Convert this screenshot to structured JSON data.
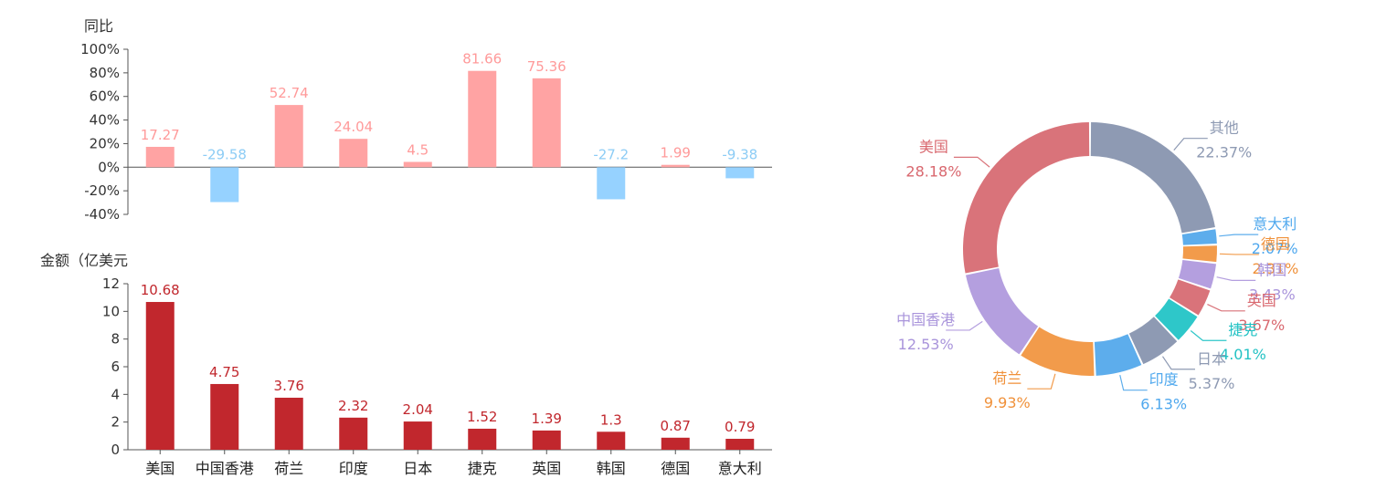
{
  "colors": {
    "yoy_positive": "#FFA3A3",
    "yoy_negative": "#96D2FF",
    "yoy_positive_label": "#FF9A9A",
    "yoy_negative_label": "#8CCCF5",
    "amount_bar": "#C1272D",
    "amount_label": "#C1272D",
    "axis": "#555555"
  },
  "chart_data": [
    {
      "type": "bar",
      "ylabel": "同比",
      "categories": [
        "美国",
        "中国香港",
        "荷兰",
        "印度",
        "日本",
        "捷克",
        "英国",
        "韩国",
        "德国",
        "意大利"
      ],
      "values": [
        17.27,
        -29.58,
        52.74,
        24.04,
        4.5,
        81.66,
        75.36,
        -27.2,
        1.99,
        -9.38
      ],
      "data_labels": [
        "17.27",
        "-29.58",
        "52.74",
        "24.04",
        "4.5",
        "81.66",
        "75.36",
        "-27.2",
        "1.99",
        "-9.38"
      ],
      "ylim": [
        -40,
        100
      ],
      "yticks": [
        "100%",
        "80%",
        "60%",
        "40%",
        "20%",
        "0%",
        "-20%",
        "-40%"
      ],
      "ytick_values": [
        100,
        80,
        60,
        40,
        20,
        0,
        -20,
        -40
      ]
    },
    {
      "type": "bar",
      "ylabel": "金额（亿美元",
      "categories": [
        "美国",
        "中国香港",
        "荷兰",
        "印度",
        "日本",
        "捷克",
        "英国",
        "韩国",
        "德国",
        "意大利"
      ],
      "values": [
        10.68,
        4.75,
        3.76,
        2.32,
        2.04,
        1.52,
        1.39,
        1.3,
        0.87,
        0.79
      ],
      "data_labels": [
        "10.68",
        "4.75",
        "3.76",
        "2.32",
        "2.04",
        "1.52",
        "1.39",
        "1.3",
        "0.87",
        "0.79"
      ],
      "ylim": [
        0,
        12
      ],
      "yticks": [
        "12",
        "10",
        "8",
        "6",
        "4",
        "2",
        "0"
      ],
      "ytick_values": [
        12,
        10,
        8,
        6,
        4,
        2,
        0
      ]
    },
    {
      "type": "pie",
      "donut": true,
      "slices": [
        {
          "label": "其他",
          "value": 22.37,
          "pct": "22.37%",
          "color": "#8E9AB3",
          "text_color": "#8E9AB3"
        },
        {
          "label": "意大利",
          "value": 2.07,
          "pct": "2.07%",
          "color": "#5DADEC",
          "text_color": "#4FA8EE"
        },
        {
          "label": "德国",
          "value": 2.31,
          "pct": "2.31%",
          "color": "#F29B4B",
          "text_color": "#F0913A"
        },
        {
          "label": "韩国",
          "value": 3.43,
          "pct": "3.43%",
          "color": "#B49FDF",
          "text_color": "#A994DB"
        },
        {
          "label": "英国",
          "value": 3.67,
          "pct": "3.67%",
          "color": "#D9737A",
          "text_color": "#D9686F"
        },
        {
          "label": "捷克",
          "value": 4.01,
          "pct": "4.01%",
          "color": "#2EC7C9",
          "text_color": "#22C2C4"
        },
        {
          "label": "日本",
          "value": 5.37,
          "pct": "5.37%",
          "color": "#8E9AB3",
          "text_color": "#8E9AB3"
        },
        {
          "label": "印度",
          "value": 6.13,
          "pct": "6.13%",
          "color": "#5DADEC",
          "text_color": "#4FA8EE"
        },
        {
          "label": "荷兰",
          "value": 9.93,
          "pct": "9.93%",
          "color": "#F29B4B",
          "text_color": "#F0913A"
        },
        {
          "label": "中国香港",
          "value": 12.53,
          "pct": "12.53%",
          "color": "#B49FDF",
          "text_color": "#A994DB"
        },
        {
          "label": "美国",
          "value": 28.18,
          "pct": "28.18%",
          "color": "#D9737A",
          "text_color": "#D9686F"
        }
      ]
    }
  ]
}
